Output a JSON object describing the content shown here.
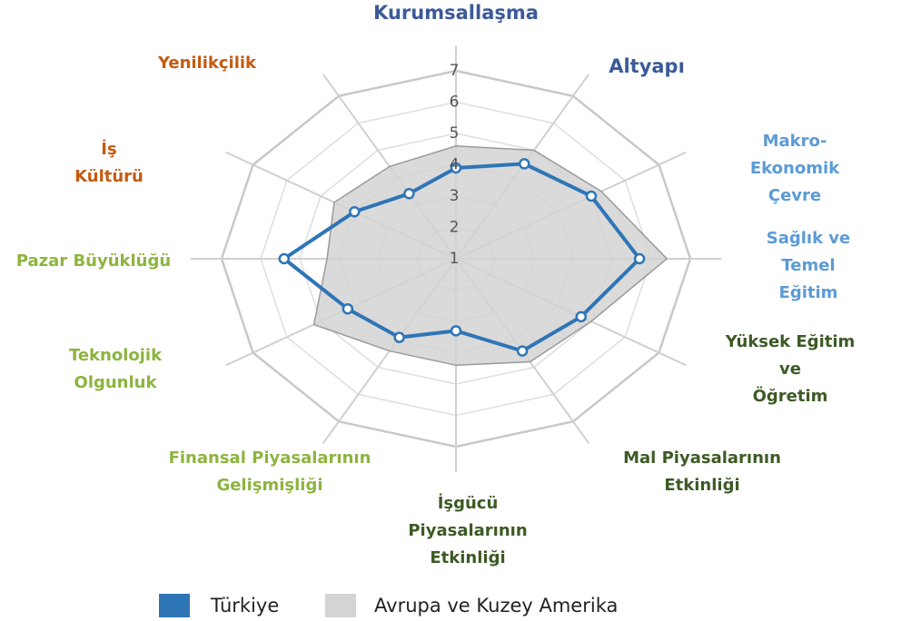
{
  "chart_data": {
    "type": "radar",
    "categories": [
      "Kurumsallaşma",
      "Altyapı",
      "Makro-Ekonomik\nÇevre",
      "Sağlık ve Temel\nEğitim",
      "Yüksek Eğitim ve\nÖğretim",
      "Mal Piyasalarının\nEtkinliği",
      "İşgücü\nPiyasalarının\nEtkinliği",
      "Finansal Piyasalarının\nGelişmişliği",
      "Teknolojik\nOlgunluk",
      "Pazar Büyüklüğü",
      "İş\nKültürü",
      "Yenilikçilik"
    ],
    "label_colors": [
      "#3b5a9a",
      "#3b5a9a",
      "#5b9bd5",
      "#5b9bd5",
      "#3d5a25",
      "#3d5a25",
      "#3d5a25",
      "#8db43f",
      "#8db43f",
      "#8db43f",
      "#c55a11",
      "#c55a11"
    ],
    "series": [
      {
        "name": "Türkiye",
        "color": "#2e75b6",
        "values": [
          3.9,
          4.5,
          5.0,
          5.7,
          4.7,
          4.4,
          3.3,
          3.9,
          4.2,
          5.4,
          4.0,
          3.4
        ]
      },
      {
        "name": "Avrupa ve Kuzey Amerika",
        "color": "#d4d4d4",
        "values": [
          4.6,
          5.0,
          5.3,
          6.4,
          5.0,
          4.8,
          4.4,
          4.4,
          5.2,
          4.3,
          4.6,
          4.4
        ]
      }
    ],
    "rlim": [
      1,
      7
    ],
    "rticks": [
      1,
      2,
      3,
      4,
      5,
      6,
      7
    ],
    "grid": true
  }
}
